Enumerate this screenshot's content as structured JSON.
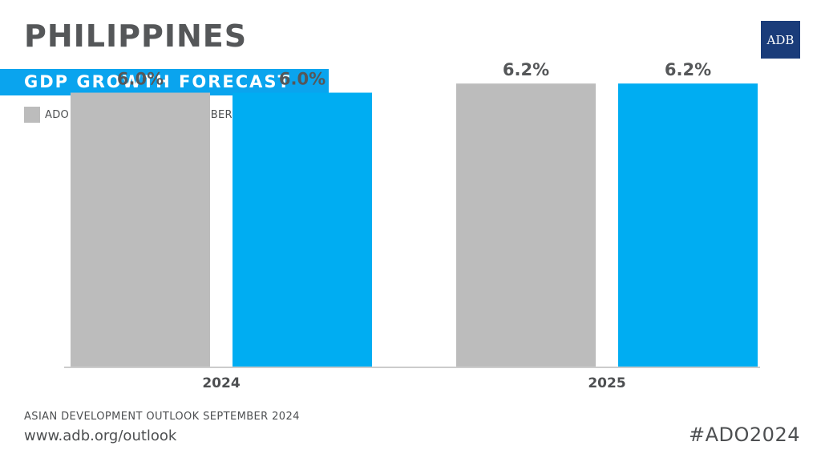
{
  "header": {
    "title": "PHILIPPINES",
    "subtitle": "GDP GROWTH FORECAST",
    "logo_text": "ADB"
  },
  "legend": [
    {
      "label": "ADO APRIL",
      "color": "#bcbcbc"
    },
    {
      "label": "ADO SEPTEMBER",
      "color": "#00adf2"
    }
  ],
  "chart_data": {
    "type": "bar",
    "categories": [
      "2024",
      "2025"
    ],
    "series": [
      {
        "name": "ADO APRIL",
        "values": [
          6.0,
          6.2
        ],
        "color": "#bcbcbc",
        "labels": [
          "6.0%",
          "6.2%"
        ]
      },
      {
        "name": "ADO SEPTEMBER",
        "values": [
          6.0,
          6.2
        ],
        "color": "#00adf2",
        "labels": [
          "6.0%",
          "6.2%"
        ]
      }
    ],
    "title": "GDP GROWTH FORECAST",
    "xlabel": "",
    "ylabel": "",
    "ylim": [
      0,
      6.8
    ],
    "grid": false,
    "legend_position": "top-left"
  },
  "footer": {
    "source": "ASIAN DEVELOPMENT OUTLOOK SEPTEMBER 2024",
    "url": "www.adb.org/outlook",
    "hashtag": "#ADO2024"
  },
  "colors": {
    "accent": "#0aa4ee",
    "title_text": "#555759",
    "logo_bg": "#1a3c7a",
    "axis": "#cccccc"
  }
}
